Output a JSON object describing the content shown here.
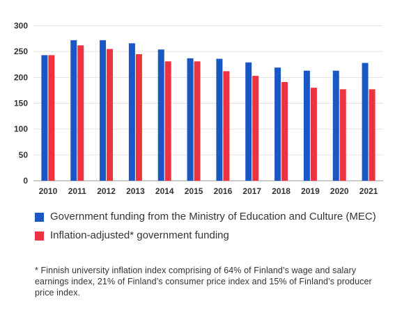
{
  "chart_data": {
    "type": "bar",
    "categories": [
      "2010",
      "2011",
      "2012",
      "2013",
      "2014",
      "2015",
      "2016",
      "2017",
      "2018",
      "2019",
      "2020",
      "2021"
    ],
    "series": [
      {
        "name": "Government funding from the Ministry of Education and Culture (MEC)",
        "color": "#1a56c4",
        "values": [
          243,
          272,
          272,
          266,
          254,
          237,
          236,
          229,
          219,
          213,
          213,
          228
        ]
      },
      {
        "name": "Inflation-adjusted* government funding",
        "color": "#ee3340",
        "values": [
          243,
          262,
          255,
          245,
          231,
          231,
          212,
          203,
          191,
          180,
          177,
          177
        ]
      }
    ],
    "yticks": [
      "0",
      "50",
      "100",
      "150",
      "200",
      "250",
      "300"
    ],
    "ylim": [
      0,
      300
    ],
    "grid": true,
    "legend_position": "bottom"
  },
  "legend": {
    "items": [
      {
        "label": "Government funding from the Ministry of Education and Culture (MEC)",
        "color": "#1a56c4"
      },
      {
        "label": "Inflation-adjusted* government funding",
        "color": "#ee3340"
      }
    ]
  },
  "footnote": "* Finnish university inflation index comprising of 64% of Finland’s wage and salary earnings index, 21% of Finland’s consumer price index and 15% of Finland’s producer price index."
}
